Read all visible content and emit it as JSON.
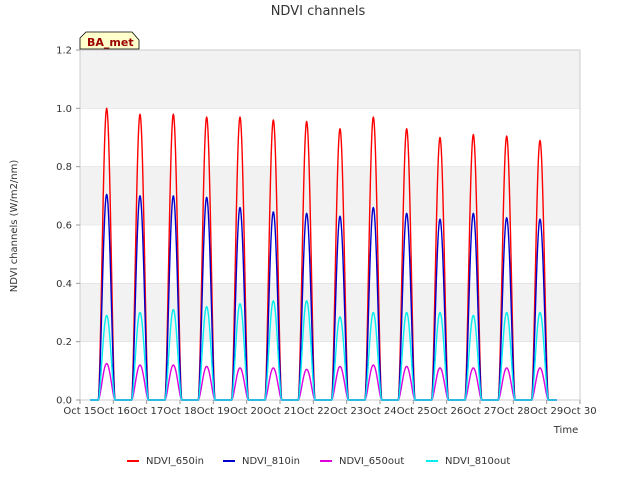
{
  "chart_data": {
    "type": "line",
    "title": "NDVI channels",
    "xlabel": "Time",
    "ylabel": "NDVI channels (W/m2/nm)",
    "badge": "BA_met",
    "ylim": [
      0,
      1.2
    ],
    "yticks": [
      "0.0",
      "0.2",
      "0.4",
      "0.6",
      "0.8",
      "1.0",
      "1.2"
    ],
    "xlim": [
      15,
      30
    ],
    "xticks": [
      "Oct 15",
      "Oct 16",
      "Oct 17",
      "Oct 18",
      "Oct 19",
      "Oct 20",
      "Oct 21",
      "Oct 22",
      "Oct 23",
      "Oct 24",
      "Oct 25",
      "Oct 26",
      "Oct 27",
      "Oct 28",
      "Oct 29",
      "Oct 30"
    ],
    "grid": "horizontal bands",
    "legend_position": "bottom",
    "day_peak_offset": 0.8,
    "data_start": 15.3,
    "data_end": 29.3,
    "series": [
      {
        "name": "NDVI_650in",
        "color": "#ff0000",
        "peaks": [
          1.0,
          0.98,
          0.98,
          0.97,
          0.97,
          0.96,
          0.955,
          0.93,
          0.97,
          0.93,
          0.9,
          0.91,
          0.905,
          0.89
        ]
      },
      {
        "name": "NDVI_810in",
        "color": "#0000cc",
        "peaks": [
          0.705,
          0.7,
          0.7,
          0.695,
          0.66,
          0.645,
          0.64,
          0.63,
          0.66,
          0.64,
          0.62,
          0.64,
          0.625,
          0.62
        ]
      },
      {
        "name": "NDVI_650out",
        "color": "#dd00dd",
        "peaks": [
          0.125,
          0.12,
          0.12,
          0.115,
          0.11,
          0.11,
          0.105,
          0.115,
          0.12,
          0.115,
          0.11,
          0.11,
          0.11,
          0.11
        ]
      },
      {
        "name": "NDVI_810out",
        "color": "#00eeee",
        "peaks": [
          0.29,
          0.3,
          0.31,
          0.32,
          0.33,
          0.34,
          0.34,
          0.285,
          0.3,
          0.3,
          0.3,
          0.29,
          0.3,
          0.3
        ]
      }
    ]
  }
}
